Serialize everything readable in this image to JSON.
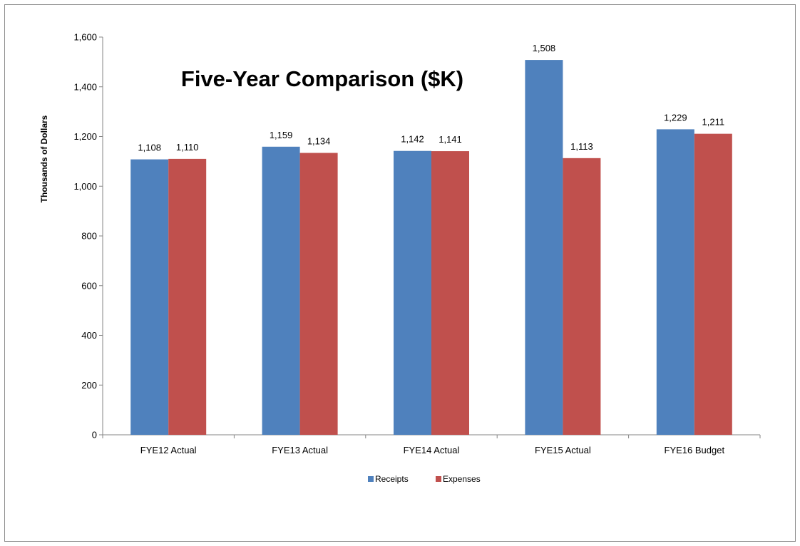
{
  "chart_data": {
    "type": "bar",
    "title": "Five-Year Comparison ($K)",
    "xlabel": "",
    "ylabel": "Thousands of Dollars",
    "categories": [
      "FYE12  Actual",
      "FYE13 Actual",
      "FYE14 Actual",
      "FYE15 Actual",
      "FYE16 Budget"
    ],
    "series": [
      {
        "name": "Receipts",
        "color": "#4F81BD",
        "values": [
          1108,
          1159,
          1142,
          1508,
          1229
        ],
        "labels": [
          "1,108",
          "1,159",
          "1,142",
          "1,508",
          "1,229"
        ]
      },
      {
        "name": "Expenses",
        "color": "#C0504D",
        "values": [
          1110,
          1134,
          1141,
          1113,
          1211
        ],
        "labels": [
          "1,110",
          "1,134",
          "1,141",
          "1,113",
          "1,211"
        ]
      }
    ],
    "ylim": [
      0,
      1600
    ],
    "yticks": [
      0,
      200,
      400,
      600,
      800,
      1000,
      1200,
      1400,
      1600
    ],
    "ytick_labels": [
      "0",
      "200",
      "400",
      "600",
      "800",
      "1,000",
      "1,200",
      "1,400",
      "1,600"
    ],
    "grid": false,
    "legend_position": "bottom-center"
  }
}
